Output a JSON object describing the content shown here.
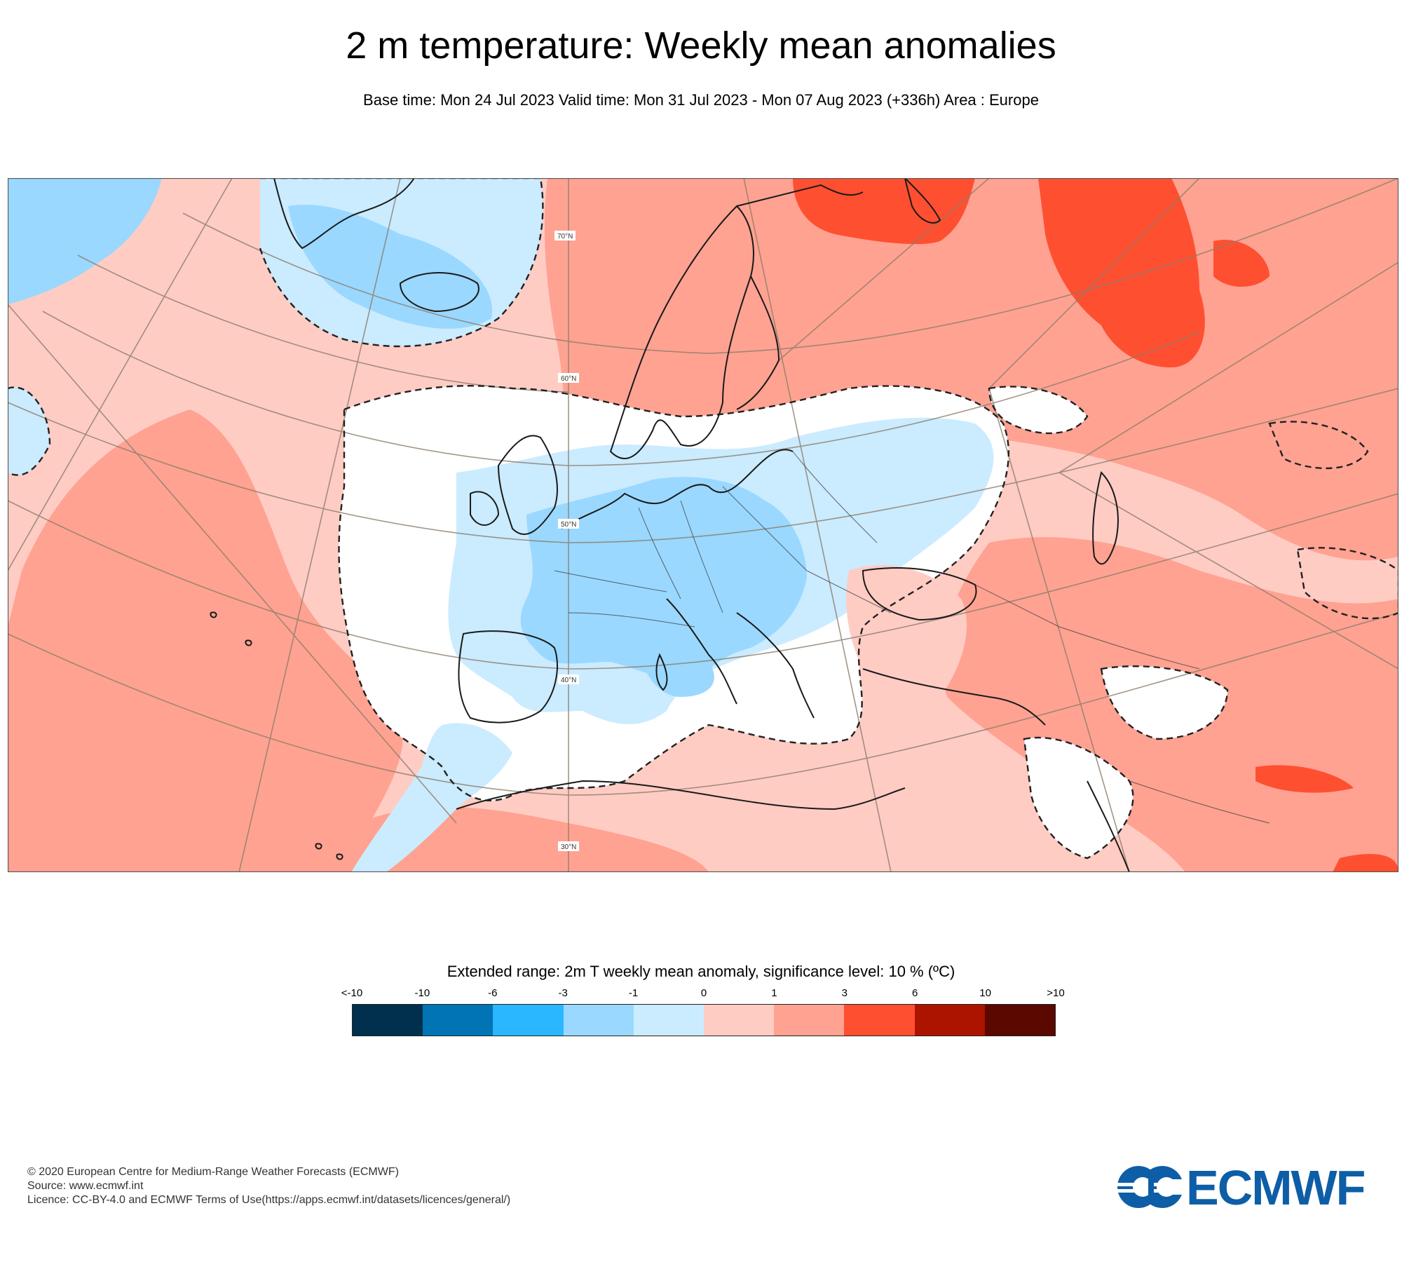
{
  "header": {
    "title": "2 m temperature: Weekly mean anomalies",
    "subtitle": "Base time: Mon 24 Jul 2023 Valid time: Mon 31 Jul 2023 - Mon 07 Aug 2023 (+336h) Area : Europe"
  },
  "map": {
    "latitude_labels": [
      "70°N",
      "60°N",
      "50°N",
      "40°N",
      "30°N"
    ],
    "colors": {
      "land_coast": "#1a1a1a",
      "graticule": "#8b7d6b",
      "significance_contour": "#222222"
    }
  },
  "legend": {
    "title": "Extended range: 2m T weekly mean anomaly, significance level: 10 % (ºC)",
    "ticks": [
      "<-10",
      "-10",
      "-6",
      "-3",
      "-1",
      "0",
      "1",
      "3",
      "6",
      "10",
      ">10"
    ],
    "colors": [
      "#00304d",
      "#0074b5",
      "#2bb7ff",
      "#9ad8ff",
      "#cbebff",
      "#ffccc4",
      "#ffa292",
      "#ff4f31",
      "#ad1400",
      "#5a0800"
    ]
  },
  "footer": {
    "copyright": "© 2020 European Centre for Medium-Range Weather Forecasts (ECMWF)",
    "source": "Source: www.ecmwf.int",
    "licence": "Licence: CC-BY-4.0 and ECMWF Terms of Use(https://apps.ecmwf.int/datasets/licences/general/)"
  },
  "logo": {
    "name": "ECMWF",
    "color": "#0d5ea6",
    "icon": "ecmwf-logo-icon"
  }
}
